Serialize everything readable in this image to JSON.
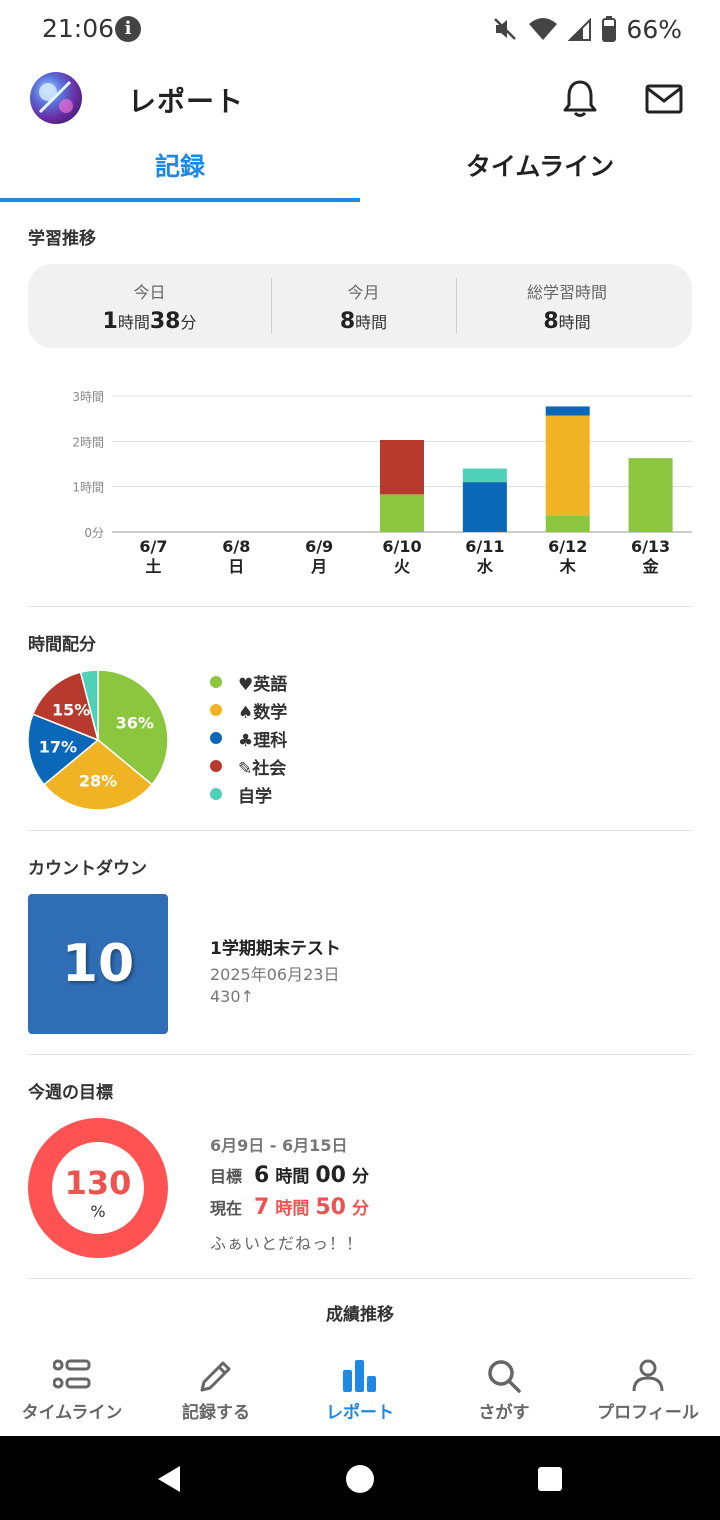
{
  "status_bar": {
    "time": "21:06",
    "battery": "66%"
  },
  "header": {
    "title": "レポート"
  },
  "tabs": [
    {
      "label": "記録",
      "active": true
    },
    {
      "label": "タイムライン",
      "active": false
    }
  ],
  "study_trend": {
    "title": "学習推移",
    "summary": [
      {
        "label": "今日",
        "hours": "1",
        "hours_unit": "時間",
        "minutes": "38",
        "minutes_unit": "分"
      },
      {
        "label": "今月",
        "hours": "8",
        "hours_unit": "時間"
      },
      {
        "label": "総学習時間",
        "hours": "8",
        "hours_unit": "時間"
      }
    ]
  },
  "chart_data": {
    "type": "bar",
    "stacked": true,
    "categories": [
      "6/7",
      "6/8",
      "6/9",
      "6/10",
      "6/11",
      "6/12",
      "6/13"
    ],
    "weekdays": [
      "土",
      "日",
      "月",
      "火",
      "水",
      "木",
      "金"
    ],
    "y_tick_labels": [
      "0分",
      "1時間",
      "2時間",
      "3時間"
    ],
    "ylim": [
      0,
      3
    ],
    "series": [
      {
        "key": "english",
        "color": "#8cc63f",
        "values": [
          0,
          0,
          0,
          0.83,
          0,
          0.37,
          1.63
        ]
      },
      {
        "key": "math",
        "color": "#f0b323",
        "values": [
          0,
          0,
          0,
          0,
          0,
          2.2,
          0
        ]
      },
      {
        "key": "science",
        "color": "#0b68b8",
        "values": [
          0,
          0,
          0,
          0,
          1.1,
          0.2,
          0
        ]
      },
      {
        "key": "social",
        "color": "#b83a2e",
        "values": [
          0,
          0,
          0,
          1.2,
          0,
          0,
          0
        ]
      },
      {
        "key": "self",
        "color": "#4fd1b8",
        "values": [
          0,
          0,
          0,
          0,
          0.3,
          0,
          0
        ]
      }
    ]
  },
  "allocation": {
    "title": "時間配分",
    "slices": [
      {
        "name": "♥英語",
        "percent": 36,
        "label": "36%",
        "color": "#8cc63f"
      },
      {
        "name": "♠数学",
        "percent": 28,
        "label": "28%",
        "color": "#f0b323"
      },
      {
        "name": "♣理科",
        "percent": 17,
        "label": "17%",
        "color": "#0b68b8"
      },
      {
        "name": "✎社会",
        "percent": 15,
        "label": "15%",
        "color": "#b83a2e"
      },
      {
        "name": "自学",
        "percent": 4,
        "label": "",
        "color": "#4fd1b8"
      }
    ]
  },
  "countdown": {
    "title": "カウントダウン",
    "days": "10",
    "event": "1学期期末テスト",
    "date": "2025年06月23日",
    "target": "430↑"
  },
  "weekly_goal": {
    "title": "今週の目標",
    "percent": "130",
    "percent_unit": "%",
    "period": "6月9日 - 6月15日",
    "target_label": "目標",
    "target_hours": "6",
    "target_minutes": "00",
    "current_label": "現在",
    "current_hours": "7",
    "current_minutes": "50",
    "hours_unit": "時間",
    "minutes_unit": "分",
    "message": "ふぁいとだねっ！！"
  },
  "grades": {
    "title": "成績推移"
  },
  "bottom_nav": [
    {
      "label": "タイムライン",
      "icon": "timeline-icon"
    },
    {
      "label": "記録する",
      "icon": "pencil-icon"
    },
    {
      "label": "レポート",
      "icon": "bar-chart-icon",
      "active": true
    },
    {
      "label": "さがす",
      "icon": "search-icon"
    },
    {
      "label": "プロフィール",
      "icon": "person-icon"
    }
  ]
}
